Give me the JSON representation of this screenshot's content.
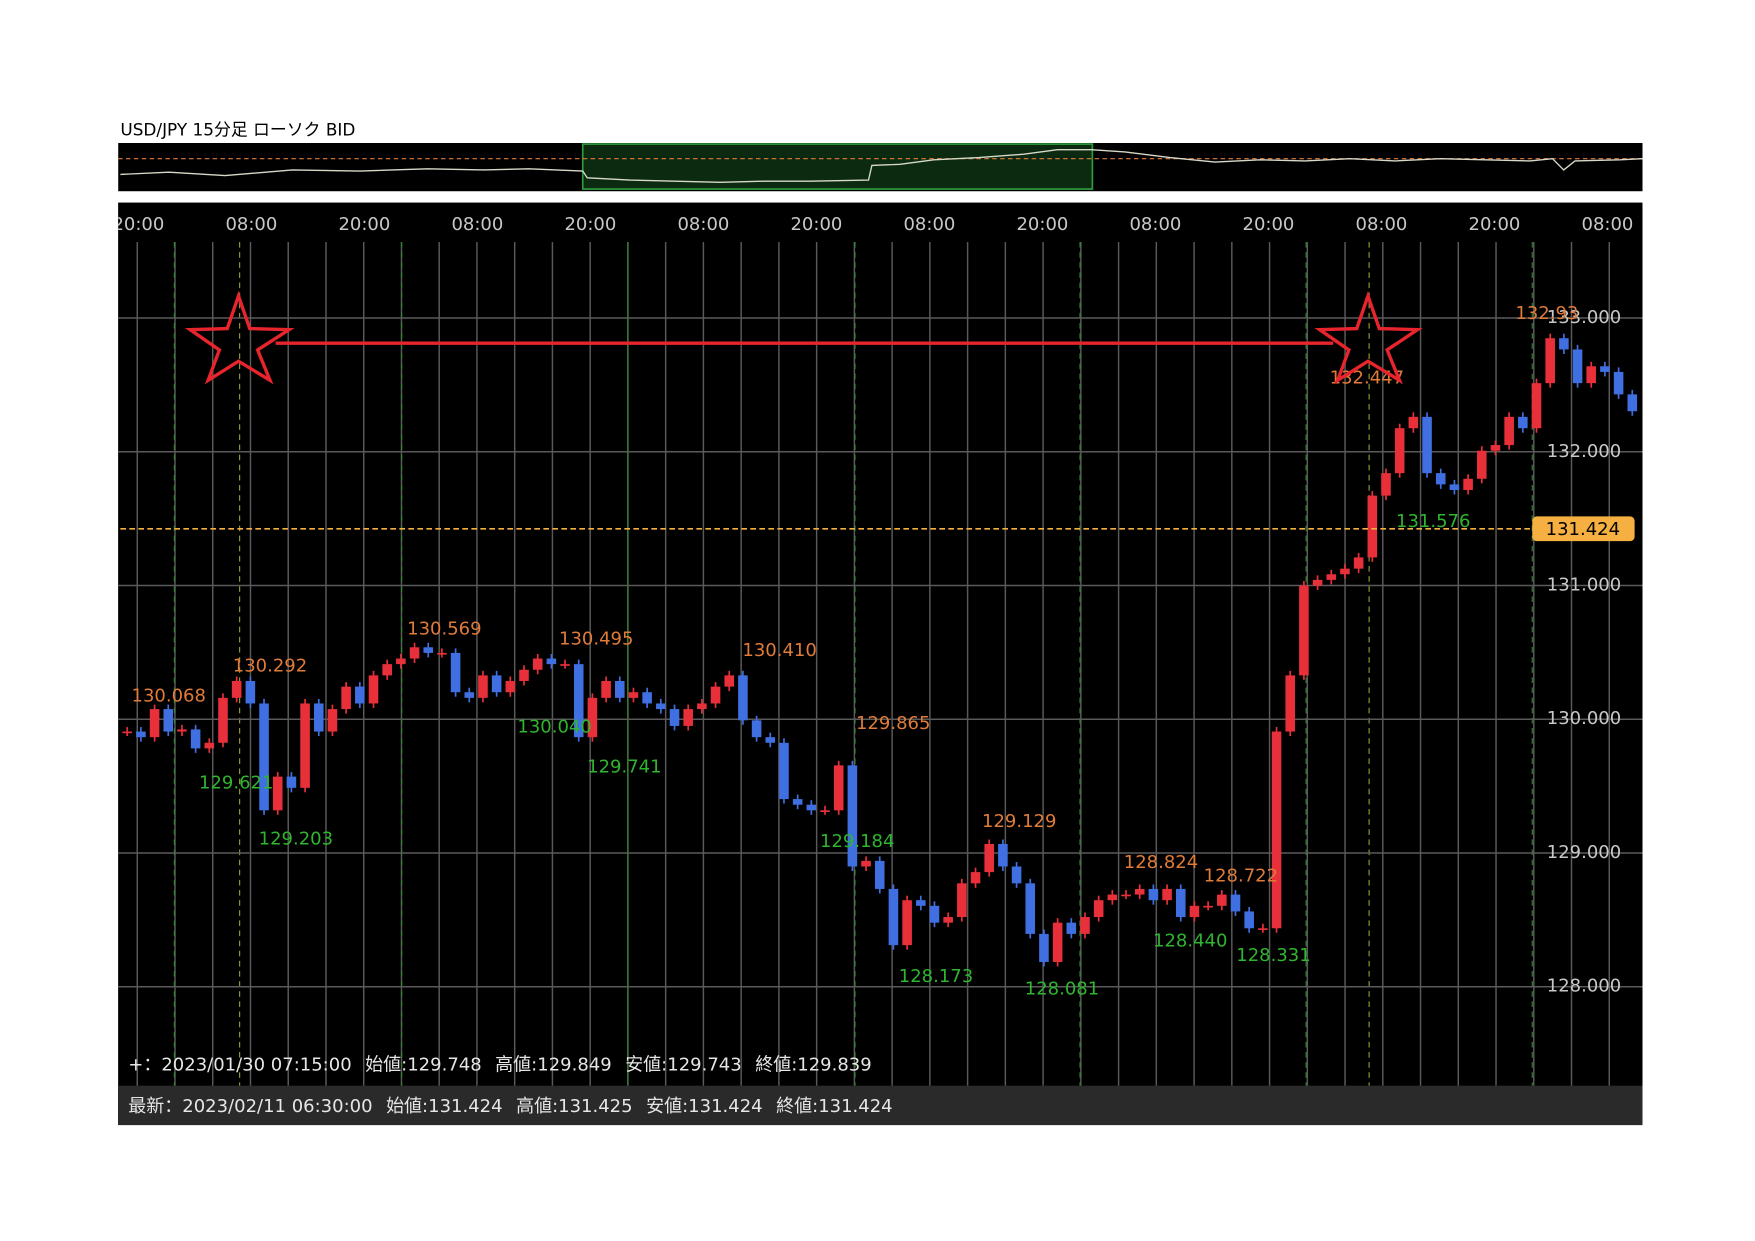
{
  "chart_data": {
    "type": "candlestick",
    "title": "USD/JPY 15分足 ローソク BID",
    "time_labels": [
      "20:00",
      "08:00",
      "20:00",
      "08:00",
      "20:00",
      "08:00",
      "20:00",
      "08:00",
      "20:00",
      "08:00",
      "20:00",
      "08:00",
      "20:00",
      "08:00"
    ],
    "closes": [
      129.908,
      129.866,
      130.076,
      129.908,
      129.924,
      129.782,
      129.824,
      130.16,
      130.286,
      130.118,
      129.319,
      129.571,
      129.487,
      130.118,
      129.908,
      130.076,
      130.244,
      130.118,
      130.328,
      130.412,
      130.454,
      130.538,
      130.496,
      130.496,
      130.202,
      130.16,
      130.328,
      130.202,
      130.286,
      130.37,
      130.454,
      130.412,
      130.412,
      129.866,
      130.16,
      130.286,
      130.16,
      130.202,
      130.118,
      130.076,
      129.95,
      130.076,
      130.118,
      130.244,
      130.328,
      129.992,
      129.866,
      129.824,
      129.403,
      129.361,
      129.319,
      129.319,
      129.655,
      128.899,
      128.941,
      128.731,
      128.311,
      128.647,
      128.605,
      128.479,
      128.521,
      128.773,
      128.857,
      129.067,
      128.899,
      128.773,
      128.395,
      128.185,
      128.479,
      128.395,
      128.521,
      128.647,
      128.689,
      128.689,
      128.731,
      128.647,
      128.731,
      128.521,
      128.605,
      128.605,
      128.689,
      128.563,
      128.437,
      128.437,
      129.908,
      130.328,
      131.0,
      131.042,
      131.084,
      131.126,
      131.21,
      131.672,
      131.84,
      132.176,
      132.261,
      131.84,
      131.756,
      131.714,
      131.798,
      132.008,
      132.05,
      132.261,
      132.176,
      132.513,
      132.849,
      132.765,
      132.513,
      132.639,
      132.597,
      132.429,
      132.303
    ],
    "ylim": [
      127.26,
      133.51
    ],
    "yticks": [
      {
        "value": 128,
        "label": "128.000"
      },
      {
        "value": 129,
        "label": "129.000"
      },
      {
        "value": 130,
        "label": "130.000"
      },
      {
        "value": 131,
        "label": "131.000"
      },
      {
        "value": 132,
        "label": "132.000"
      },
      {
        "value": 133,
        "label": "133.000"
      }
    ],
    "grid": true,
    "last_price": 131.424,
    "highs": [
      130.068,
      130.292,
      130.569,
      130.495,
      {
        "value": 130.41,
        "label": "130.410"
      },
      129.865,
      129.129,
      128.824,
      128.722,
      132.447,
      132.93
    ],
    "lows": [
      129.621,
      129.203,
      {
        "value": 130.04,
        "label": "130.040"
      },
      129.741,
      129.184,
      128.173,
      128.081,
      {
        "value": 128.44,
        "label": "128.440"
      },
      128.331,
      131.576
    ],
    "crosshair": {
      "prefix": "+：",
      "time": "2023/01/30 07:15:00",
      "open": 129.748,
      "high": 129.849,
      "low": 129.743,
      "close": 129.839
    },
    "latest": {
      "prefix": "最新：",
      "time": "2023/02/11 06:30:00",
      "open": 131.424,
      "high": 131.425,
      "low": 131.424,
      "close": 131.424
    },
    "ohlc_labels": {
      "open": "始値:",
      "high": "高値:",
      "low": "安値:",
      "close": "終値:"
    },
    "colors": {
      "up": "#e8303a",
      "down": "#3f6fe0",
      "high_label": "#e07b39",
      "low_label": "#2fb52f",
      "last_price": "#f5b041"
    }
  }
}
